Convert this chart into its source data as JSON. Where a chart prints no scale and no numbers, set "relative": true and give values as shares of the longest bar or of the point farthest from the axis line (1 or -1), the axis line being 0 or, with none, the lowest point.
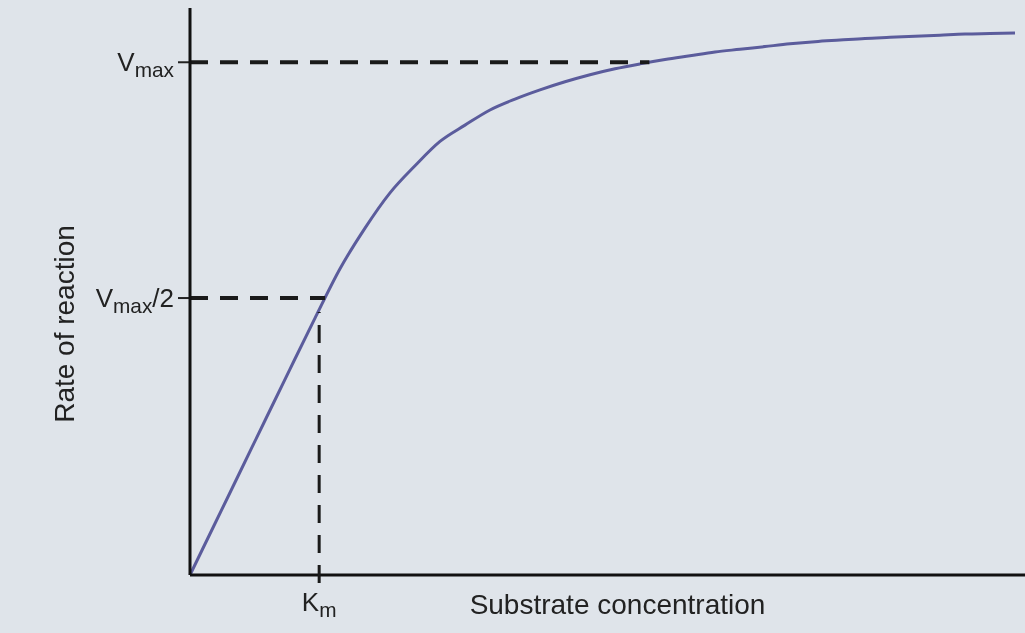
{
  "chart_data": {
    "type": "line",
    "relative": true,
    "xlabel": "Substrate concentration",
    "ylabel": "Rate of reaction",
    "annotations": [
      "K$_{m}$"
    ],
    "categories": [
      null,
      null,
      null,
      null,
      null,
      null,
      null,
      null,
      null,
      null,
      null,
      null,
      null,
      null,
      null,
      null,
      null,
      null,
      null,
      null,
      null,
      null,
      null,
      null,
      null,
      null,
      null,
      null,
      null,
      null,
      null,
      null,
      null,
      null
    ],
    "series": [
      {
        "color": "#5b5c9c",
        "values": [
          0,
          0.095,
          0.19,
          0.285,
          0.38,
          0.474,
          0.565,
          0.64,
          0.705,
          0.755,
          0.8,
          0.83,
          0.858,
          0.878,
          0.895,
          0.91,
          0.923,
          0.934,
          0.943,
          0.951,
          0.958,
          0.965,
          0.97,
          0.975,
          0.98,
          0.984,
          0.987,
          0.99,
          0.992,
          0.994,
          0.996,
          0.998,
          0.999,
          1
        ]
      }
    ],
    "ref_lines": [
      {
        "axis": "y",
        "value": 0.946,
        "label": "V$_{max}$",
        "color": "#1a1a1a",
        "line_style": "dashed"
      },
      {
        "axis": "y",
        "value": 0.511,
        "label": "V$_{max}$/2",
        "color": "#1a1a1a",
        "line_style": "dashed"
      }
    ],
    "marker": "none",
    "line_style": "solid"
  }
}
